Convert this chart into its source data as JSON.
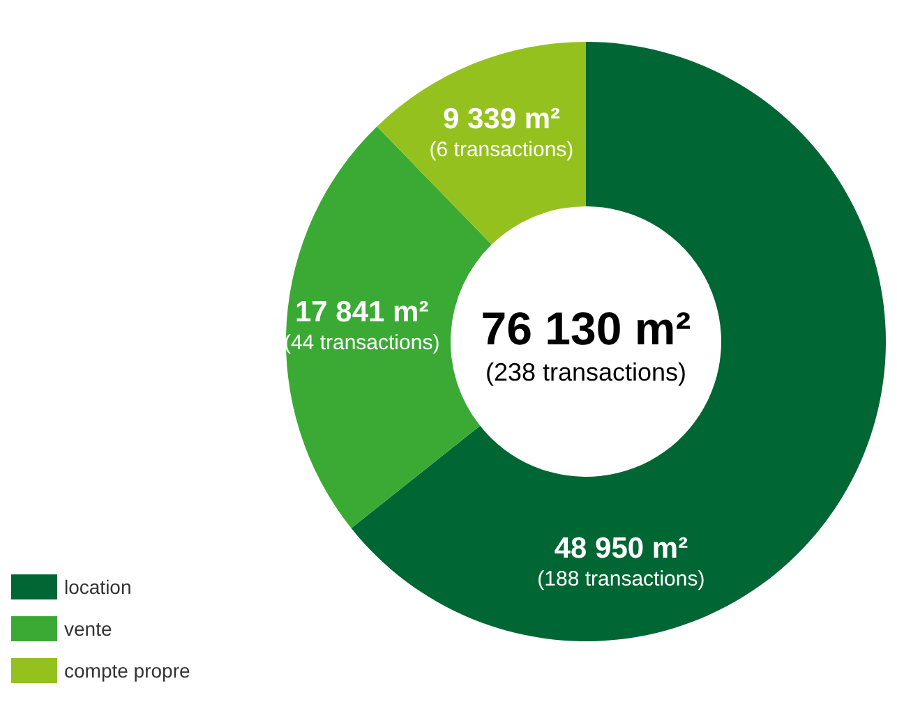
{
  "chart_data": {
    "type": "donut",
    "categories": [
      "location",
      "vente",
      "compte propre"
    ],
    "values": [
      48950,
      17841,
      9339
    ],
    "colors": [
      "#006633",
      "#3aaa35",
      "#95c11f"
    ],
    "value_labels": [
      "48 950 m²",
      "17 841 m²",
      "9 339 m²"
    ],
    "annotations": [
      "76 130 m²",
      "(238 transactions)",
      "(188 transactions)",
      "(44 transactions)",
      "(6 transactions)"
    ],
    "legend": "bottom left"
  }
}
